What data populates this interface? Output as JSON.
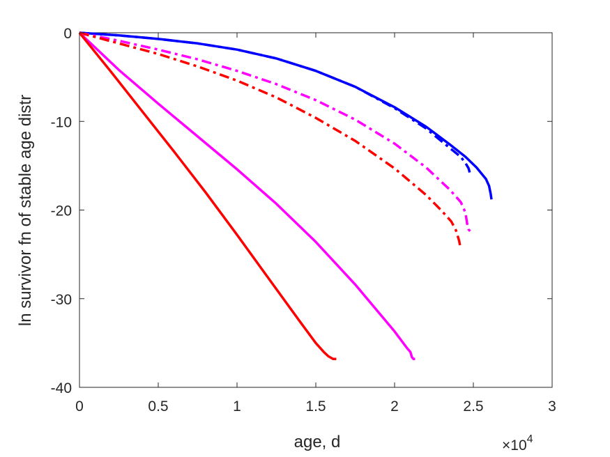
{
  "chart_data": {
    "type": "line",
    "title": "",
    "xlabel": "age, d",
    "ylabel": "ln survivor fn of stable age distr",
    "x_multiplier": "×10",
    "x_multiplier_exp": "4",
    "xlim": [
      0,
      30000
    ],
    "ylim": [
      -40,
      0
    ],
    "xticks": [
      0,
      5000,
      10000,
      15000,
      20000,
      25000,
      30000
    ],
    "xtick_labels": [
      "0",
      "0.5",
      "1",
      "1.5",
      "2",
      "2.5",
      "3"
    ],
    "yticks": [
      0,
      -10,
      -20,
      -30,
      -40
    ],
    "ytick_labels": [
      "0",
      "-10",
      "-20",
      "-30",
      "-40"
    ],
    "grid": false,
    "legend": "none",
    "series": [
      {
        "color": "#0000ff",
        "style": "solid",
        "x": [
          0,
          2500,
          5000,
          7500,
          10000,
          12500,
          15000,
          17500,
          20000,
          22000,
          23500,
          24500,
          25200,
          25800,
          26000,
          26100,
          26150
        ],
        "y": [
          0,
          -0.3,
          -0.7,
          -1.2,
          -1.9,
          -2.9,
          -4.3,
          -6.1,
          -8.4,
          -10.6,
          -12.6,
          -14.0,
          -15.2,
          -16.5,
          -17.3,
          -18.2,
          -18.8
        ]
      },
      {
        "color": "#0000ff",
        "style": "dashdot",
        "x": [
          0,
          2500,
          5000,
          7500,
          10000,
          12500,
          15000,
          17500,
          20000,
          22000,
          23500,
          24200,
          24500,
          24700,
          24800
        ],
        "y": [
          0,
          -0.3,
          -0.7,
          -1.2,
          -1.9,
          -2.9,
          -4.3,
          -6.1,
          -8.5,
          -10.8,
          -13.0,
          -14.0,
          -14.7,
          -15.3,
          -16.0
        ]
      },
      {
        "color": "#ff00ff",
        "style": "dashdot",
        "x": [
          0,
          2500,
          5000,
          7500,
          10000,
          12500,
          15000,
          17500,
          20000,
          22000,
          23500,
          24200,
          24500,
          24600,
          24700,
          24800
        ],
        "y": [
          0,
          -0.9,
          -1.9,
          -3.0,
          -4.3,
          -5.8,
          -7.6,
          -9.8,
          -12.5,
          -15.2,
          -17.7,
          -19.1,
          -20.3,
          -21.5,
          -22.2,
          -22.4
        ]
      },
      {
        "color": "#ff0000",
        "style": "dashdot",
        "x": [
          0,
          2500,
          5000,
          7500,
          10000,
          12500,
          15000,
          17500,
          20000,
          22000,
          23000,
          23600,
          23900,
          24100,
          24150
        ],
        "y": [
          0,
          -1.2,
          -2.4,
          -3.8,
          -5.4,
          -7.3,
          -9.6,
          -12.2,
          -15.3,
          -18.3,
          -20.1,
          -21.3,
          -22.3,
          -23.5,
          -24.0
        ]
      },
      {
        "color": "#ff00ff",
        "style": "solid",
        "x": [
          0,
          2500,
          5000,
          7500,
          10000,
          12500,
          15000,
          17500,
          20000,
          20800,
          21000,
          21100,
          21200,
          21300
        ],
        "y": [
          0,
          -4.2,
          -8.0,
          -11.7,
          -15.4,
          -19.3,
          -23.6,
          -28.4,
          -33.7,
          -35.6,
          -36.0,
          -36.6,
          -36.8,
          -36.8
        ]
      },
      {
        "color": "#ff0000",
        "style": "solid",
        "x": [
          0,
          2000,
          4000,
          6000,
          8000,
          10000,
          12000,
          14000,
          15000,
          15500,
          15800,
          16000,
          16100,
          16300
        ],
        "y": [
          0,
          -4.4,
          -8.9,
          -13.4,
          -18.0,
          -22.8,
          -27.7,
          -32.6,
          -35.0,
          -36.0,
          -36.5,
          -36.7,
          -36.8,
          -36.8
        ]
      }
    ]
  }
}
